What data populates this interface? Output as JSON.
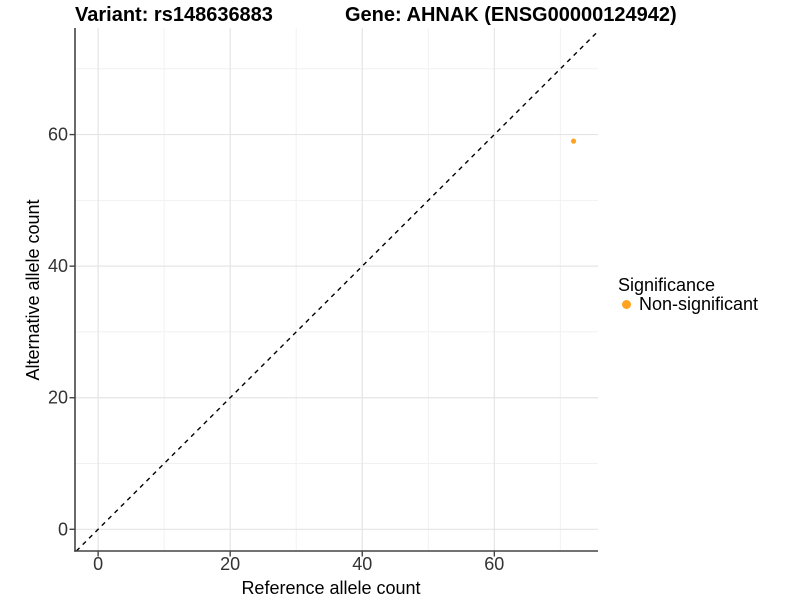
{
  "page": {
    "background": "#FFFFFF"
  },
  "title": {
    "left": "Variant: rs148636883",
    "right": "Gene: AHNAK (ENSG00000124942)"
  },
  "chart_data": {
    "type": "scatter",
    "title": "Variant: rs148636883 — Gene: AHNAK (ENSG00000124942)",
    "xlabel": "Reference allele count",
    "ylabel": "Alternative allele count",
    "xlim": [
      -3.5,
      75.7
    ],
    "ylim": [
      -3.3,
      76.2
    ],
    "x_ticks": [
      0,
      20,
      40,
      60
    ],
    "y_ticks": [
      0,
      20,
      40,
      60
    ],
    "x_minor_ticks": [
      10,
      30,
      50,
      70
    ],
    "y_minor_ticks": [
      10,
      30,
      50,
      70
    ],
    "grid": "major+minor",
    "reference_line": {
      "type": "identity y=x",
      "linetype": "dashed",
      "color": "#000000"
    },
    "series": [
      {
        "name": "Non-significant",
        "color": "#FFA320",
        "points": [
          {
            "x": 72,
            "y": 59
          }
        ]
      }
    ],
    "legend": {
      "title": "Significance",
      "position": "right",
      "items": [
        {
          "label": "Non-significant",
          "color": "#FFA320",
          "marker": "circle"
        }
      ]
    }
  },
  "colors": {
    "point_orange": "#FFA320",
    "axis_line": "#444444",
    "tick_label": "#333333",
    "grid_major": "#E5E5E5",
    "grid_minor": "#F1F1F1",
    "text": "#000000"
  }
}
